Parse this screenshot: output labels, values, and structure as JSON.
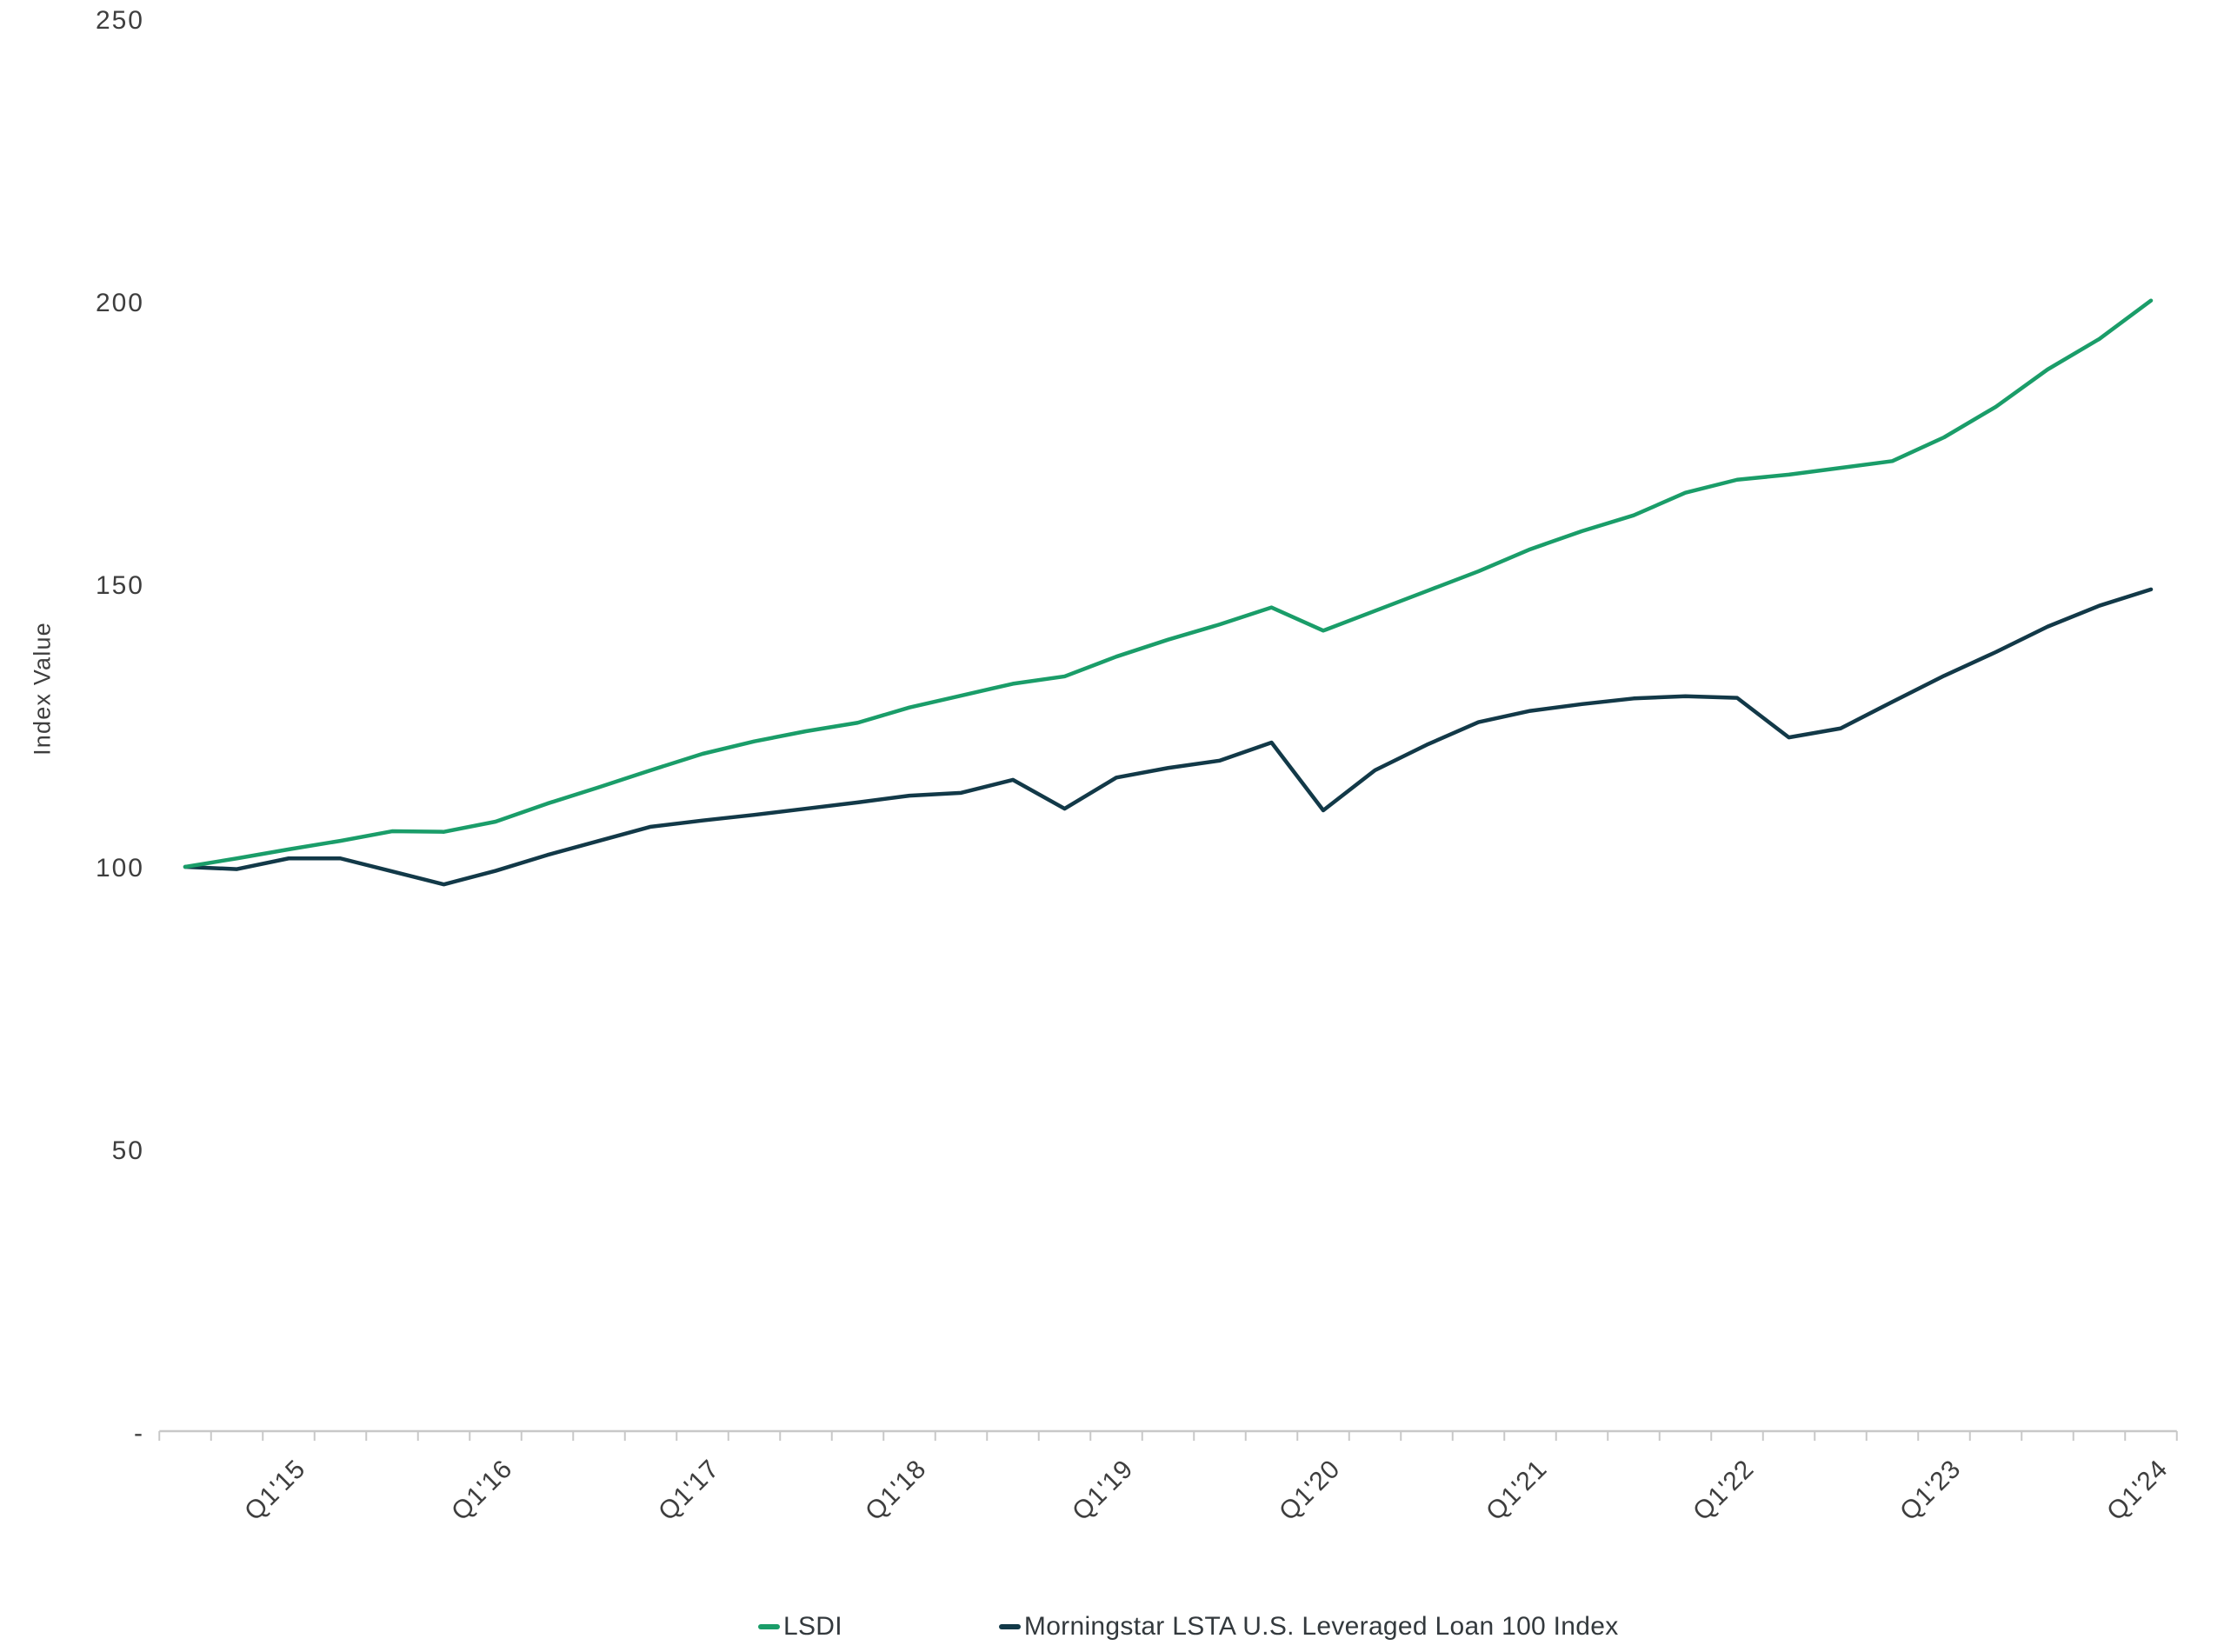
{
  "chart_data": {
    "type": "line",
    "title": "",
    "xlabel": "",
    "ylabel": "Index Value",
    "ylim": [
      0,
      250
    ],
    "grid": false,
    "legend_position": "bottom-center",
    "axis_color": "#c8c8c8",
    "text_color": "#3e3e3e",
    "y_ticks": {
      "values": [
        250,
        200,
        150,
        100,
        50,
        0
      ],
      "labels": [
        "250",
        "200",
        "150",
        "100",
        "50",
        "-"
      ]
    },
    "x": [
      "Q3'14",
      "Q4'14",
      "Q1'15",
      "Q2'15",
      "Q3'15",
      "Q4'15",
      "Q1'16",
      "Q2'16",
      "Q3'16",
      "Q4'16",
      "Q1'17",
      "Q2'17",
      "Q3'17",
      "Q4'17",
      "Q1'18",
      "Q2'18",
      "Q3'18",
      "Q4'18",
      "Q1'19",
      "Q2'19",
      "Q3'19",
      "Q4'19",
      "Q1'20",
      "Q2'20",
      "Q3'20",
      "Q4'20",
      "Q1'21",
      "Q2'21",
      "Q3'21",
      "Q4'21",
      "Q1'22",
      "Q2'22",
      "Q3'22",
      "Q4'22",
      "Q1'23",
      "Q2'23",
      "Q3'23",
      "Q4'23",
      "Q1'24"
    ],
    "x_labeled_ticks": [
      "Q1'15",
      "Q1'16",
      "Q1'17",
      "Q1'18",
      "Q1'19",
      "Q1'20",
      "Q1'21",
      "Q1'22",
      "Q1'23",
      "Q1'24"
    ],
    "series": [
      {
        "name": "LSDI",
        "color": "#1a9d69",
        "values": [
          100,
          101.5,
          103.1,
          104.6,
          106.3,
          106.2,
          108,
          111.2,
          114.1,
          117.1,
          120,
          122.2,
          124,
          125.5,
          128.2,
          130.3,
          132.4,
          133.7,
          137.2,
          140.2,
          142.9,
          145.9,
          141.8,
          145.3,
          148.8,
          152.3,
          156.2,
          159.4,
          162.2,
          166.2,
          168.5,
          169.4,
          170.6,
          171.8,
          176,
          181.4,
          188,
          193.4,
          200.2
        ]
      },
      {
        "name": "Morningstar LSTA U.S. Leveraged Loan 100 Index",
        "color": "#123948",
        "values": [
          100,
          99.6,
          101.5,
          101.5,
          99.2,
          96.9,
          99.3,
          102.1,
          104.6,
          107.1,
          108.2,
          109.2,
          110.3,
          111.4,
          112.6,
          113.1,
          115.4,
          110.3,
          115.8,
          117.5,
          118.8,
          122,
          110,
          117.1,
          121.6,
          125.6,
          127.6,
          128.8,
          129.8,
          130.2,
          129.9,
          122.9,
          124.5,
          129.2,
          133.8,
          138,
          142.5,
          146.2,
          149.1
        ]
      }
    ]
  }
}
